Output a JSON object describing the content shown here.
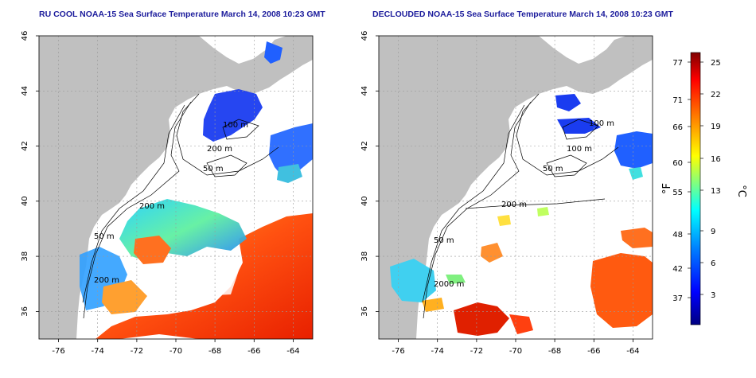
{
  "panels": [
    {
      "id": "left",
      "title": "RU COOL NOAA-15 Sea Surface Temperature March 14, 2008 10:23 GMT",
      "depth_labels": [
        "100 m",
        "200 m",
        "50 m",
        "200 m",
        "50 m",
        "200 m"
      ]
    },
    {
      "id": "right",
      "title": "DECLOUDED NOAA-15 Sea Surface Temperature March 14, 2008 10:23 GMT",
      "depth_labels": [
        "100 m",
        "100 m",
        "50 m",
        "200 m",
        "50 m",
        "2000 m"
      ]
    }
  ],
  "axes": {
    "x_ticks": [
      "-76",
      "-74",
      "-72",
      "-70",
      "-68",
      "-66",
      "-64"
    ],
    "y_ticks": [
      "46",
      "44",
      "42",
      "40",
      "38",
      "36"
    ],
    "lon_range": [
      -77,
      -63
    ],
    "lat_range": [
      35,
      46
    ],
    "grid": "dashed"
  },
  "colorbar": {
    "fahrenheit_ticks": [
      "77",
      "71",
      "66",
      "60",
      "55",
      "48",
      "42",
      "37"
    ],
    "celsius_ticks": [
      "25",
      "22",
      "19",
      "16",
      "13",
      "9",
      "6",
      "3"
    ],
    "fahrenheit_unit": "°F",
    "celsius_unit": "°C",
    "colors": [
      "#000080",
      "#0000ff",
      "#0080ff",
      "#00ffff",
      "#80ff80",
      "#ffff00",
      "#ff8000",
      "#ff0000",
      "#800000"
    ]
  },
  "colors": {
    "land": "#c0c0c0",
    "ocean": "#ffffff",
    "contour": "#000000",
    "title": "#1c1c9c"
  }
}
